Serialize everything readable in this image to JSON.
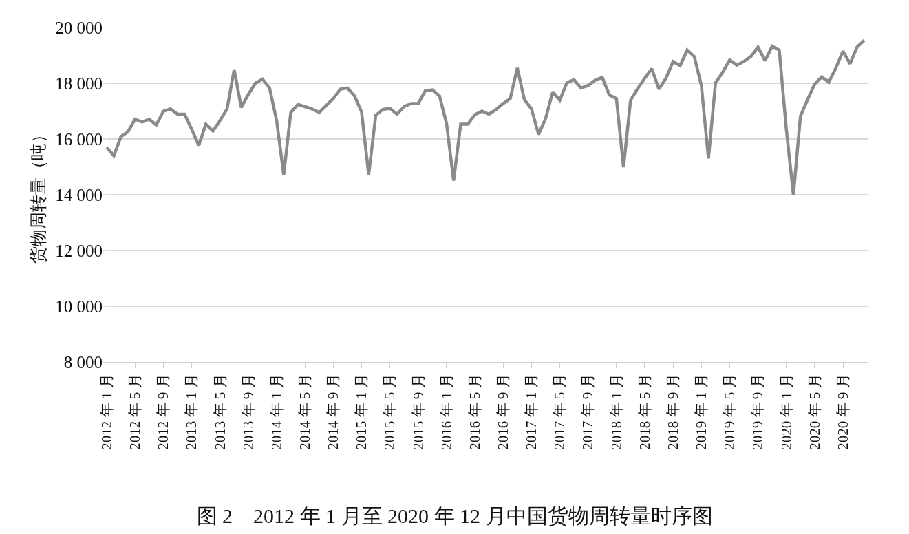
{
  "chart_data": {
    "type": "line",
    "title": "图 2　2012 年 1 月至 2020 年 12 月中国货物周转量时序图",
    "ylabel": "货物周转量（吨）",
    "categories": [
      "2012 年 1 月",
      null,
      null,
      null,
      "2012 年 5 月",
      null,
      null,
      null,
      "2012 年 9 月",
      null,
      null,
      null,
      "2013 年 1 月",
      null,
      null,
      null,
      "2013 年 5 月",
      null,
      null,
      null,
      "2013 年 9 月",
      null,
      null,
      null,
      "2014 年 1 月",
      null,
      null,
      null,
      "2014 年 5 月",
      null,
      null,
      null,
      "2014 年 9 月",
      null,
      null,
      null,
      "2015 年 1 月",
      null,
      null,
      null,
      "2015 年 5 月",
      null,
      null,
      null,
      "2015 年 9 月",
      null,
      null,
      null,
      "2016 年 1 月",
      null,
      null,
      null,
      "2016 年 5 月",
      null,
      null,
      null,
      "2016 年 9 月",
      null,
      null,
      null,
      "2017 年 1 月",
      null,
      null,
      null,
      "2017 年 5 月",
      null,
      null,
      null,
      "2017 年 9 月",
      null,
      null,
      null,
      "2018 年 1 月",
      null,
      null,
      null,
      "2018 年 5 月",
      null,
      null,
      null,
      "2018 年 9 月",
      null,
      null,
      null,
      "2019 年 1 月",
      null,
      null,
      null,
      "2019 年 5 月",
      null,
      null,
      null,
      "2019 年 9 月",
      null,
      null,
      null,
      "2020 年 1 月",
      null,
      null,
      null,
      "2020 年 5 月",
      null,
      null,
      null,
      "2020 年 9 月",
      null,
      null,
      null
    ],
    "series": [
      {
        "color": "#8a8a8a",
        "values": [
          15700,
          15400,
          16080,
          16260,
          16710,
          16610,
          16710,
          16500,
          17000,
          17080,
          16890,
          16890,
          16350,
          15770,
          16530,
          16290,
          16660,
          17080,
          18490,
          17130,
          17600,
          18000,
          18150,
          17830,
          16660,
          14720,
          16950,
          17240,
          17160,
          17080,
          16950,
          17200,
          17450,
          17790,
          17830,
          17550,
          16970,
          14720,
          16850,
          17060,
          17100,
          16890,
          17160,
          17270,
          17270,
          17730,
          17760,
          17550,
          16560,
          14510,
          16530,
          16530,
          16870,
          17000,
          16890,
          17060,
          17270,
          17450,
          18550,
          17410,
          17080,
          16160,
          16740,
          17690,
          17390,
          18020,
          18130,
          17830,
          17920,
          18110,
          18210,
          17580,
          17450,
          14990,
          17390,
          17810,
          18180,
          18520,
          17790,
          18180,
          18780,
          18630,
          19190,
          18960,
          17920,
          15300,
          18020,
          18390,
          18840,
          18650,
          18780,
          18960,
          19300,
          18810,
          19330,
          19190,
          16350,
          14000,
          16820,
          17410,
          17970,
          18230,
          18040,
          18550,
          19150,
          18700,
          19300,
          19540
        ]
      }
    ],
    "ylim": [
      8000,
      20000
    ],
    "yticks": [
      {
        "value": 8000,
        "label": "8 000"
      },
      {
        "value": 10000,
        "label": "10 000"
      },
      {
        "value": 12000,
        "label": "12 000"
      },
      {
        "value": 14000,
        "label": "14 000"
      },
      {
        "value": 16000,
        "label": "16 000"
      },
      {
        "value": 18000,
        "label": "18 000"
      },
      {
        "value": 20000,
        "label": "20 000"
      }
    ],
    "grid": "y",
    "marker": "none",
    "line_style": "solid"
  }
}
